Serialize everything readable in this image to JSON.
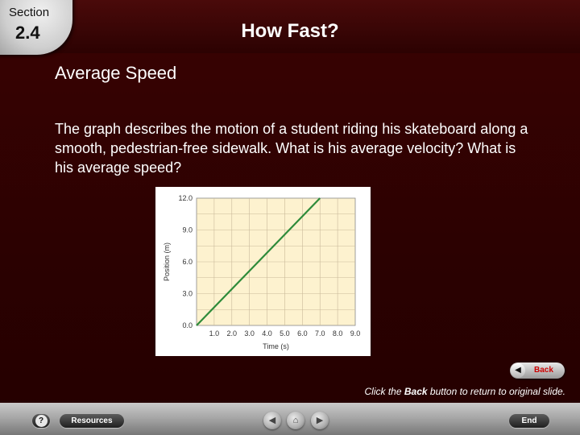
{
  "header": {
    "section_word": "Section",
    "section_number": "2.4",
    "title": "How Fast?"
  },
  "topic": "Average Speed",
  "body_text": "The graph describes the motion of a student riding his skateboard along a smooth, pedestrian-free sidewalk. What is his average velocity? What is his average speed?",
  "chart_data": {
    "type": "line",
    "xlabel": "Time (s)",
    "ylabel": "Position (m)",
    "x_ticks": [
      "1.0",
      "2.0",
      "3.0",
      "4.0",
      "5.0",
      "6.0",
      "7.0",
      "8.0",
      "9.0"
    ],
    "y_ticks": [
      "0.0",
      "3.0",
      "6.0",
      "9.0",
      "12.0"
    ],
    "xlim": [
      0,
      9
    ],
    "ylim": [
      0,
      12
    ],
    "grid": true,
    "series": [
      {
        "x": [
          0,
          7.0
        ],
        "y": [
          0,
          12.0
        ],
        "color": "#2e8b3a"
      }
    ]
  },
  "back_button": {
    "label": "Back",
    "icon": "left-arrow-icon"
  },
  "hint": {
    "pre": "Click the ",
    "bold": "Back",
    "post": " button to return to original slide."
  },
  "nav": {
    "help": "?",
    "resources": "Resources",
    "end": "End",
    "prev_icon": "◀",
    "home_icon": "⌂",
    "next_icon": "▶"
  },
  "colors": {
    "background": "#2b0101",
    "graph_fill": "#fdf2cf",
    "line": "#2e8b3a",
    "back_label": "#cc0000"
  }
}
